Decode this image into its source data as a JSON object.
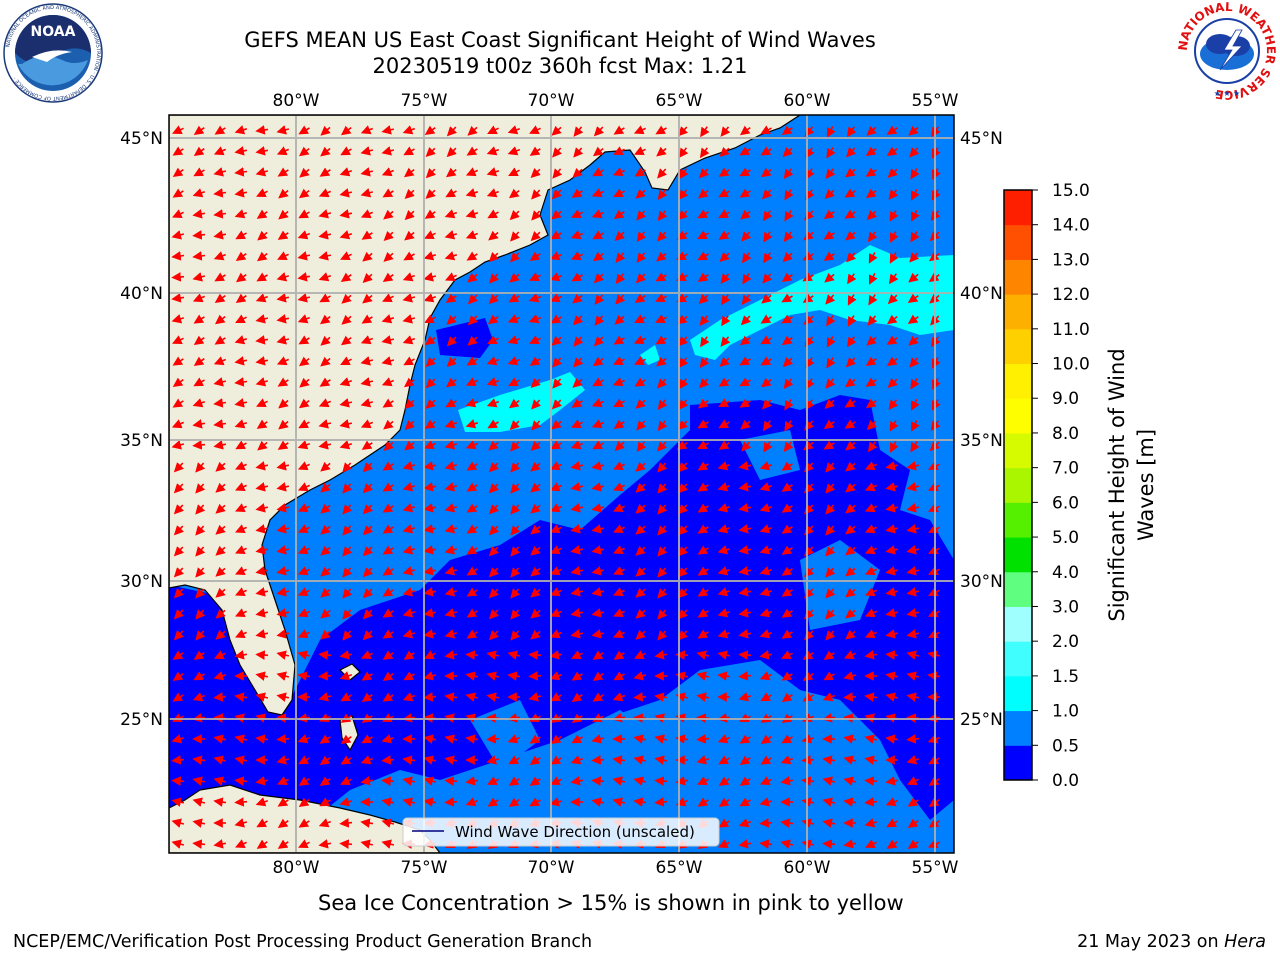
{
  "header": {
    "title_line1": "GEFS MEAN US East Coast Significant Height of Wind Waves",
    "title_line2": "20230519 t00z 360h fcst   Max: 1.21"
  },
  "logos": {
    "left": {
      "text": "NOAA",
      "ring_text": "NATIONAL OCEANIC AND ATMOSPHERIC ADMINISTRATION · U.S. DEPARTMENT OF COMMERCE ·"
    },
    "right": {
      "ring_text": "NATIONAL WEATHER SERVICE"
    }
  },
  "map": {
    "lon_labels": [
      "80°W",
      "75°W",
      "70°W",
      "65°W",
      "60°W",
      "55°W"
    ],
    "lat_labels": [
      "45°N",
      "40°N",
      "35°N",
      "30°N",
      "25°N"
    ],
    "legend_label": "Wind Wave Direction (unscaled)",
    "colors": {
      "land": "#efeedd",
      "ocean_low": "#0000fe",
      "ocean_mid": "#0080fe",
      "ocean_high": "#00fefe",
      "arrows": "#ff0000",
      "grid": "#b0b0b0"
    }
  },
  "colorbar": {
    "label_line1": "Significant Height of Wind",
    "label_line2": "Waves [m]",
    "ticks": [
      "0.0",
      "0.5",
      "1.0",
      "1.5",
      "2.0",
      "3.0",
      "4.0",
      "5.0",
      "6.0",
      "7.0",
      "8.0",
      "9.0",
      "10.0",
      "11.0",
      "12.0",
      "13.0",
      "14.0",
      "15.0"
    ],
    "colors": [
      "#0000fe",
      "#0080fe",
      "#00fefe",
      "#40fefe",
      "#9ffefe",
      "#60fe80",
      "#00e100",
      "#55f000",
      "#aaf500",
      "#d6fb00",
      "#fefe00",
      "#fef000",
      "#fed000",
      "#feb000",
      "#fe8500",
      "#fe5000",
      "#fe1f00"
    ]
  },
  "caption": "Sea Ice Concentration > 15% is shown in pink to yellow",
  "footer": {
    "left": "NCEP/EMC/Verification Post Processing Product Generation Branch",
    "right_prefix": "21 May 2023 on ",
    "right_machine": "Hera"
  }
}
